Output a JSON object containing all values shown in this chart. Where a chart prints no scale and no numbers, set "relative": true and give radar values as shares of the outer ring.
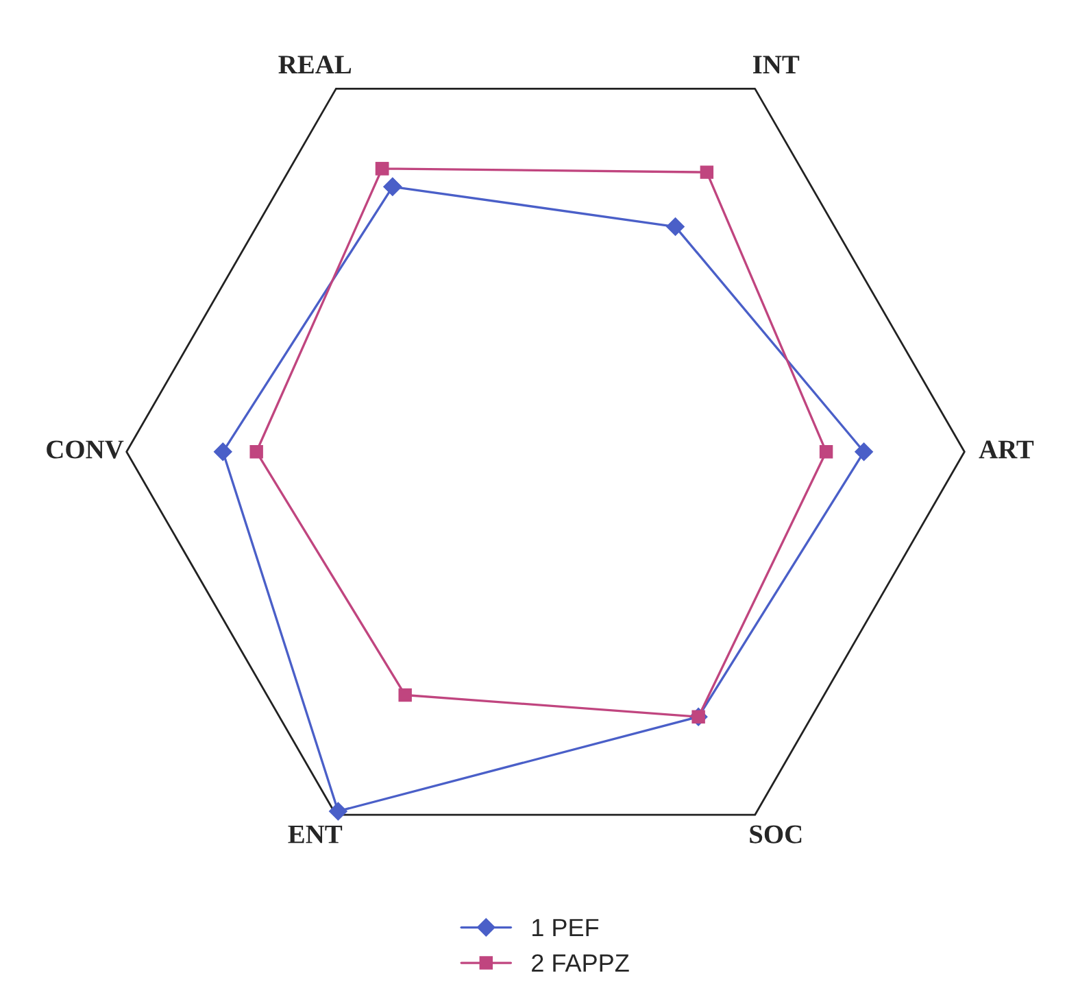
{
  "chart_data": {
    "type": "radar",
    "relative": true,
    "categories": [
      "REAL",
      "INT",
      "ART",
      "SOC",
      "ENT",
      "CONV"
    ],
    "series": [
      {
        "name": "1 PEF",
        "color": "#4a5fc8",
        "marker": "diamond",
        "values": [
          0.73,
          0.62,
          0.76,
          0.73,
          0.99,
          0.77
        ]
      },
      {
        "name": "2 FAPPZ",
        "color": "#c0457f",
        "marker": "square",
        "values": [
          0.78,
          0.77,
          0.67,
          0.73,
          0.67,
          0.69
        ]
      }
    ],
    "legend": "bottom"
  }
}
